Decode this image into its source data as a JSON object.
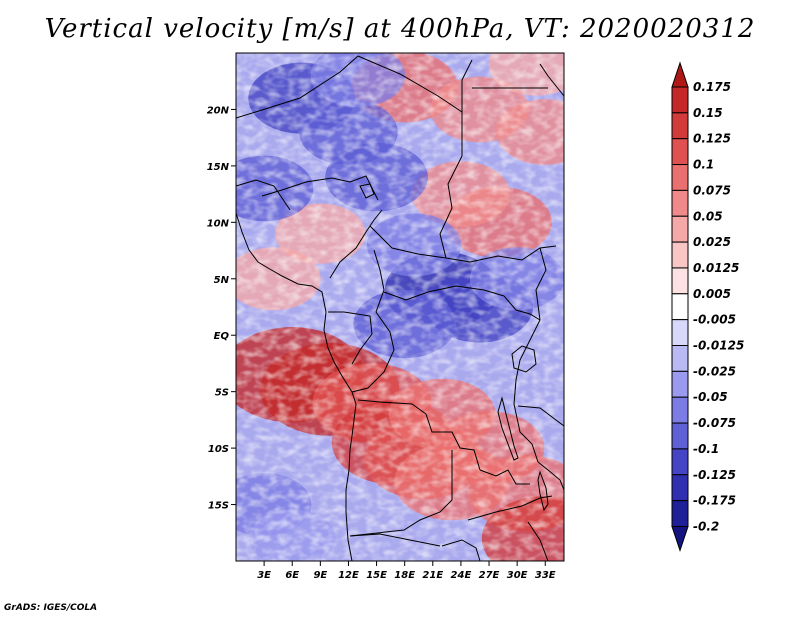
{
  "title": "Vertical velocity [m/s] at 400hPa, VT: 2020020312",
  "credit": "GrADS: IGES/COLA",
  "map": {
    "lon_range": [
      0,
      35
    ],
    "lat_range": [
      -20,
      25
    ],
    "lon_ticks": [
      {
        "value": 3,
        "label": "3E"
      },
      {
        "value": 6,
        "label": "6E"
      },
      {
        "value": 9,
        "label": "9E"
      },
      {
        "value": 12,
        "label": "12E"
      },
      {
        "value": 15,
        "label": "15E"
      },
      {
        "value": 18,
        "label": "18E"
      },
      {
        "value": 21,
        "label": "21E"
      },
      {
        "value": 24,
        "label": "24E"
      },
      {
        "value": 27,
        "label": "27E"
      },
      {
        "value": 30,
        "label": "30E"
      },
      {
        "value": 33,
        "label": "33E"
      }
    ],
    "lat_ticks": [
      {
        "value": 20,
        "label": "20N"
      },
      {
        "value": 15,
        "label": "15N"
      },
      {
        "value": 10,
        "label": "10N"
      },
      {
        "value": 5,
        "label": "5N"
      },
      {
        "value": 0,
        "label": "EQ"
      },
      {
        "value": -5,
        "label": "5S"
      },
      {
        "value": -10,
        "label": "10S"
      },
      {
        "value": -15,
        "label": "15S"
      }
    ]
  },
  "colorbar": {
    "labels": [
      "0.175",
      "0.15",
      "0.125",
      "0.1",
      "0.075",
      "0.05",
      "0.025",
      "0.0125",
      "0.005",
      "-0.005",
      "-0.0125",
      "-0.025",
      "-0.05",
      "-0.075",
      "-0.1",
      "-0.125",
      "-0.175",
      "-0.2"
    ],
    "colors": [
      "#b01818",
      "#c42828",
      "#d33a3a",
      "#e05252",
      "#ea6f6f",
      "#f08a8a",
      "#f5a8a8",
      "#f9c6c6",
      "#fce2e2",
      "#ffffff",
      "#d8d8fa",
      "#b9b9f4",
      "#9a9aee",
      "#7c7ce4",
      "#5f5fd6",
      "#4444c4",
      "#2f2fb0",
      "#1f1f98",
      "#141480"
    ]
  },
  "field_patches": [
    {
      "lon": 6,
      "lat": -3.5,
      "w": 0.9
    },
    {
      "lon": 10,
      "lat": -4.8,
      "w": 0.85
    },
    {
      "lon": 14.5,
      "lat": -6,
      "w": 0.6
    },
    {
      "lon": 17,
      "lat": -9.5,
      "w": 0.7
    },
    {
      "lon": 20,
      "lat": -11,
      "w": 0.6
    },
    {
      "lon": 23,
      "lat": -13,
      "w": 0.55
    },
    {
      "lon": 27,
      "lat": -10,
      "w": 0.5
    },
    {
      "lon": 31,
      "lat": -14,
      "w": 0.55
    },
    {
      "lon": 33,
      "lat": -18,
      "w": 0.7
    },
    {
      "lon": 22,
      "lat": -7,
      "w": 0.45
    },
    {
      "lon": 18,
      "lat": 22,
      "w": 0.45
    },
    {
      "lon": 26,
      "lat": 20,
      "w": 0.35
    },
    {
      "lon": 28,
      "lat": 10,
      "w": 0.45
    },
    {
      "lon": 24,
      "lat": 12.5,
      "w": 0.35
    },
    {
      "lon": 33,
      "lat": 18,
      "w": 0.35
    },
    {
      "lon": 4,
      "lat": 5,
      "w": 0.3
    },
    {
      "lon": 9,
      "lat": 9,
      "w": 0.25
    },
    {
      "lon": 7,
      "lat": 21,
      "w": -0.45
    },
    {
      "lon": 15,
      "lat": 14,
      "w": -0.4
    },
    {
      "lon": 12,
      "lat": 18,
      "w": -0.35
    },
    {
      "lon": 22,
      "lat": 4,
      "w": -0.55
    },
    {
      "lon": 26,
      "lat": 2.5,
      "w": -0.45
    },
    {
      "lon": 18,
      "lat": 1,
      "w": -0.4
    },
    {
      "lon": 3,
      "lat": 13,
      "w": -0.35
    },
    {
      "lon": 3,
      "lat": -15,
      "w": -0.3
    },
    {
      "lon": 6,
      "lat": -18,
      "w": -0.2
    },
    {
      "lon": 30,
      "lat": 5,
      "w": -0.3
    },
    {
      "lon": 32,
      "lat": 24,
      "w": 0.3
    },
    {
      "lon": 13,
      "lat": 23,
      "w": -0.3
    },
    {
      "lon": 19,
      "lat": 8,
      "w": -0.3
    }
  ]
}
